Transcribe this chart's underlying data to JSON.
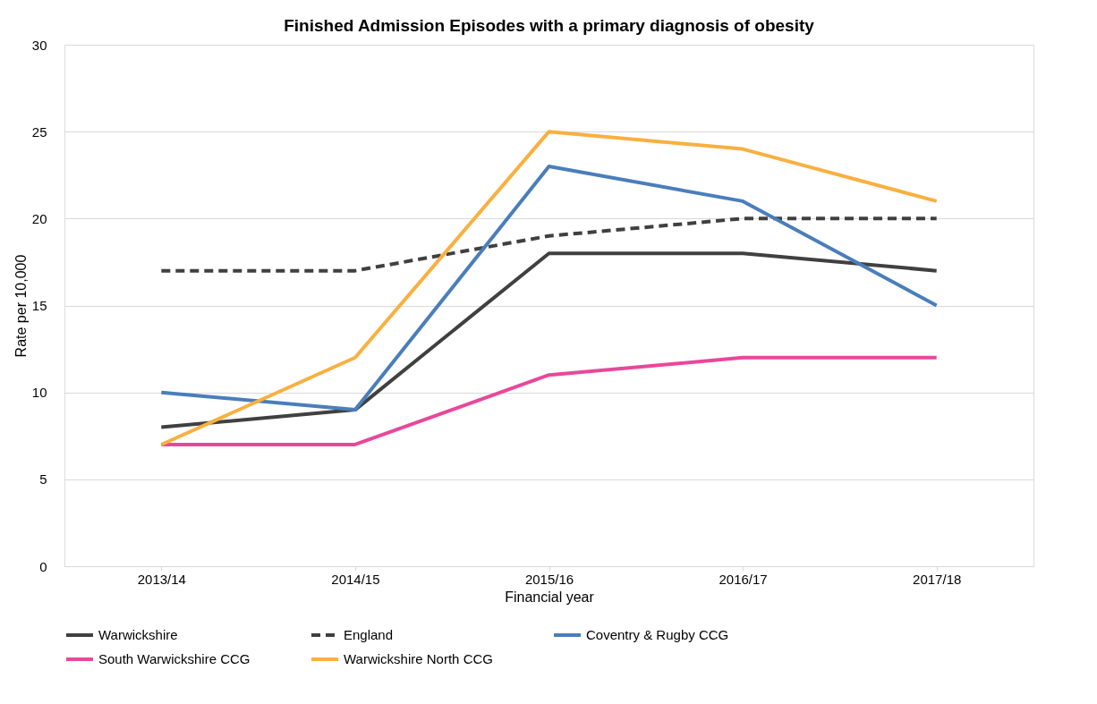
{
  "chart_data": {
    "type": "line",
    "title": "Finished Admission Episodes with a primary diagnosis of obesity",
    "xlabel": "Financial year",
    "ylabel": "Rate per 10,000",
    "categories": [
      "2013/14",
      "2014/15",
      "2015/16",
      "2016/17",
      "2017/18"
    ],
    "series": [
      {
        "name": "Warwickshire",
        "color": "#404040",
        "line_style": "solid",
        "values": [
          8,
          9,
          18,
          18,
          17
        ]
      },
      {
        "name": "England",
        "color": "#404040",
        "line_style": "dashed",
        "values": [
          17,
          17,
          19,
          20,
          20
        ]
      },
      {
        "name": "Coventry & Rugby CCG",
        "color": "#4a7ebb",
        "line_style": "solid",
        "values": [
          10,
          9,
          23,
          21,
          15
        ]
      },
      {
        "name": "South Warwickshire CCG",
        "color": "#e8489a",
        "line_style": "solid",
        "values": [
          7,
          7,
          11,
          12,
          12
        ]
      },
      {
        "name": "Warwickshire North CCG",
        "color": "#f9b040",
        "line_style": "solid",
        "values": [
          7,
          12,
          25,
          24,
          21
        ]
      }
    ],
    "ylim": [
      0,
      30
    ],
    "yticks": [
      0,
      5,
      10,
      15,
      20,
      25,
      30
    ],
    "grid": "y",
    "legend": "bottom",
    "marker": "none"
  }
}
